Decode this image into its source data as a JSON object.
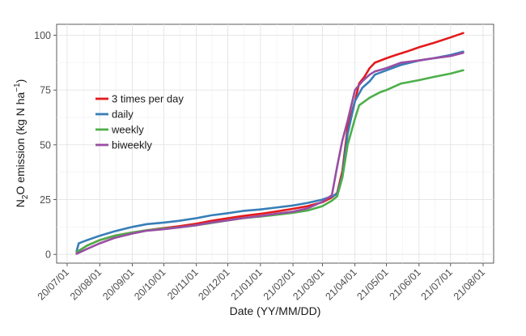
{
  "chart_data": {
    "type": "line",
    "xlabel": "Date (YY/MM/DD)",
    "ylabel": {
      "base": "N",
      "sub": "2",
      "rest": "O emission (kg N ha",
      "sup": "−1",
      "close": ")"
    },
    "x_tick_labels": [
      "20/07/01",
      "20/08/01",
      "20/09/01",
      "20/10/01",
      "20/11/01",
      "20/12/01",
      "21/01/01",
      "21/02/01",
      "21/03/01",
      "21/04/01",
      "21/05/01",
      "21/06/01",
      "21/07/01",
      "21/08/01"
    ],
    "x_tick_dates": [
      "2020-07-01",
      "2020-08-01",
      "2020-09-01",
      "2020-10-01",
      "2020-11-01",
      "2020-12-01",
      "2021-01-01",
      "2021-02-01",
      "2021-03-01",
      "2021-04-01",
      "2021-05-01",
      "2021-06-01",
      "2021-07-01",
      "2021-08-01"
    ],
    "xlim": [
      "2020-06-21",
      "2021-08-11"
    ],
    "y_ticks": [
      0,
      25,
      50,
      75,
      100
    ],
    "ylim": [
      -4,
      105
    ],
    "grid": true,
    "legend_position": "upper-left inside",
    "colors": {
      "red": "#E41A1C",
      "blue": "#377EB8",
      "green": "#4DAF4A",
      "purple": "#984EA3"
    },
    "series": [
      {
        "name": "3 times per day",
        "color": "#E41A1C",
        "points": [
          [
            "2020-07-10",
            1
          ],
          [
            "2020-07-20",
            4
          ],
          [
            "2020-08-01",
            6.5
          ],
          [
            "2020-08-15",
            8.5
          ],
          [
            "2020-09-01",
            10
          ],
          [
            "2020-09-15",
            11
          ],
          [
            "2020-10-01",
            12
          ],
          [
            "2020-10-15",
            12.8
          ],
          [
            "2020-11-01",
            14
          ],
          [
            "2020-11-15",
            15.3
          ],
          [
            "2020-12-01",
            16.5
          ],
          [
            "2020-12-15",
            17.5
          ],
          [
            "2021-01-01",
            18.5
          ],
          [
            "2021-01-15",
            19.5
          ],
          [
            "2021-02-01",
            20.8
          ],
          [
            "2021-02-15",
            22
          ],
          [
            "2021-03-01",
            23.8
          ],
          [
            "2021-03-10",
            26
          ],
          [
            "2021-03-15",
            28
          ],
          [
            "2021-03-20",
            38
          ],
          [
            "2021-03-25",
            58
          ],
          [
            "2021-04-01",
            70
          ],
          [
            "2021-04-05",
            78
          ],
          [
            "2021-04-10",
            81
          ],
          [
            "2021-04-15",
            85
          ],
          [
            "2021-04-20",
            87.5
          ],
          [
            "2021-05-01",
            89.5
          ],
          [
            "2021-05-10",
            91
          ],
          [
            "2021-05-20",
            92.5
          ],
          [
            "2021-06-01",
            94.5
          ],
          [
            "2021-06-15",
            96.5
          ],
          [
            "2021-07-01",
            99
          ],
          [
            "2021-07-13",
            101
          ]
        ]
      },
      {
        "name": "daily",
        "color": "#377EB8",
        "points": [
          [
            "2020-07-10",
            1.5
          ],
          [
            "2020-07-12",
            5
          ],
          [
            "2020-07-20",
            6.5
          ],
          [
            "2020-08-01",
            8.5
          ],
          [
            "2020-08-15",
            10.5
          ],
          [
            "2020-09-01",
            12.5
          ],
          [
            "2020-09-15",
            13.8
          ],
          [
            "2020-10-01",
            14.5
          ],
          [
            "2020-10-15",
            15.3
          ],
          [
            "2020-11-01",
            16.5
          ],
          [
            "2020-11-15",
            17.8
          ],
          [
            "2020-12-01",
            18.8
          ],
          [
            "2020-12-15",
            19.8
          ],
          [
            "2021-01-01",
            20.5
          ],
          [
            "2021-01-15",
            21.3
          ],
          [
            "2021-02-01",
            22.3
          ],
          [
            "2021-02-15",
            23.5
          ],
          [
            "2021-03-01",
            25
          ],
          [
            "2021-03-10",
            26.5
          ],
          [
            "2021-03-15",
            27.5
          ],
          [
            "2021-03-20",
            36
          ],
          [
            "2021-03-25",
            55
          ],
          [
            "2021-04-01",
            70
          ],
          [
            "2021-04-08",
            76
          ],
          [
            "2021-04-15",
            79
          ],
          [
            "2021-04-20",
            82
          ],
          [
            "2021-05-01",
            84
          ],
          [
            "2021-05-15",
            86.5
          ],
          [
            "2021-06-01",
            88.5
          ],
          [
            "2021-06-15",
            89.5
          ],
          [
            "2021-07-01",
            91
          ],
          [
            "2021-07-13",
            92.5
          ]
        ]
      },
      {
        "name": "weekly",
        "color": "#4DAF4A",
        "points": [
          [
            "2020-07-10",
            1
          ],
          [
            "2020-07-20",
            4
          ],
          [
            "2020-08-01",
            6.5
          ],
          [
            "2020-08-15",
            8.5
          ],
          [
            "2020-09-01",
            10
          ],
          [
            "2020-09-15",
            11
          ],
          [
            "2020-10-01",
            11.8
          ],
          [
            "2020-10-15",
            12.3
          ],
          [
            "2020-11-01",
            13.3
          ],
          [
            "2020-11-15",
            14.3
          ],
          [
            "2020-12-01",
            15.5
          ],
          [
            "2020-12-15",
            16.5
          ],
          [
            "2021-01-01",
            17.3
          ],
          [
            "2021-01-15",
            18
          ],
          [
            "2021-02-01",
            19
          ],
          [
            "2021-02-15",
            20
          ],
          [
            "2021-03-01",
            22
          ],
          [
            "2021-03-10",
            24.5
          ],
          [
            "2021-03-15",
            26.5
          ],
          [
            "2021-03-20",
            35
          ],
          [
            "2021-03-25",
            50
          ],
          [
            "2021-04-01",
            62
          ],
          [
            "2021-04-05",
            68
          ],
          [
            "2021-04-15",
            71.5
          ],
          [
            "2021-04-25",
            74
          ],
          [
            "2021-05-01",
            75
          ],
          [
            "2021-05-15",
            78
          ],
          [
            "2021-06-01",
            79.5
          ],
          [
            "2021-06-15",
            81
          ],
          [
            "2021-07-01",
            82.5
          ],
          [
            "2021-07-13",
            84
          ]
        ]
      },
      {
        "name": "biweekly",
        "color": "#984EA3",
        "points": [
          [
            "2020-07-10",
            0.3
          ],
          [
            "2020-07-20",
            2.5
          ],
          [
            "2020-08-01",
            5
          ],
          [
            "2020-08-15",
            7.5
          ],
          [
            "2020-09-01",
            9.5
          ],
          [
            "2020-09-15",
            10.8
          ],
          [
            "2020-10-01",
            11.5
          ],
          [
            "2020-10-15",
            12.3
          ],
          [
            "2020-11-01",
            13.3
          ],
          [
            "2020-11-15",
            14.5
          ],
          [
            "2020-12-01",
            15.5
          ],
          [
            "2020-12-15",
            16.5
          ],
          [
            "2021-01-01",
            17.5
          ],
          [
            "2021-01-15",
            18.5
          ],
          [
            "2021-02-01",
            19.5
          ],
          [
            "2021-02-15",
            21
          ],
          [
            "2021-03-01",
            24
          ],
          [
            "2021-03-10",
            27
          ],
          [
            "2021-03-15",
            40
          ],
          [
            "2021-03-20",
            52
          ],
          [
            "2021-03-25",
            61
          ],
          [
            "2021-04-01",
            75
          ],
          [
            "2021-04-08",
            79
          ],
          [
            "2021-04-15",
            82
          ],
          [
            "2021-04-20",
            83.5
          ],
          [
            "2021-05-01",
            85
          ],
          [
            "2021-05-15",
            87.5
          ],
          [
            "2021-06-01",
            88.5
          ],
          [
            "2021-06-15",
            89.5
          ],
          [
            "2021-07-01",
            90.5
          ],
          [
            "2021-07-13",
            92
          ]
        ]
      }
    ]
  }
}
